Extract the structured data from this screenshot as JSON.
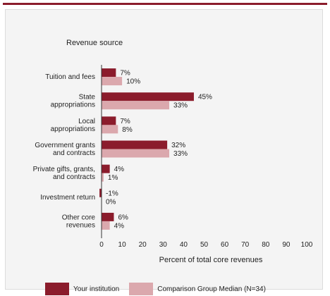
{
  "chart_data": {
    "type": "bar",
    "orientation": "horizontal",
    "title": "Revenue source",
    "xlabel": "Percent of total core revenues",
    "xlim": [
      0,
      100
    ],
    "xticks": [
      0,
      10,
      20,
      30,
      40,
      50,
      60,
      70,
      80,
      90,
      100
    ],
    "grid": false,
    "legend_position": "bottom",
    "categories": [
      [
        "Tuition and fees"
      ],
      [
        "State",
        "appropriations"
      ],
      [
        "Local",
        "appropriations"
      ],
      [
        "Government grants",
        "and contracts"
      ],
      [
        "Private gifts, grants,",
        "and contracts"
      ],
      [
        "Investment return"
      ],
      [
        "Other core",
        "revenues"
      ]
    ],
    "series": [
      {
        "name": "Your institution",
        "color": "#8b1c2c",
        "values": [
          7,
          45,
          7,
          32,
          4,
          -1,
          6
        ],
        "labels": [
          "7%",
          "45%",
          "7%",
          "32%",
          "4%",
          "-1%",
          "6%"
        ]
      },
      {
        "name": "Comparison Group Median (N=34)",
        "color": "#dba8ad",
        "values": [
          10,
          33,
          8,
          33,
          1,
          0,
          4
        ],
        "labels": [
          "10%",
          "33%",
          "8%",
          "33%",
          "1%",
          "0%",
          "4%"
        ]
      }
    ]
  }
}
